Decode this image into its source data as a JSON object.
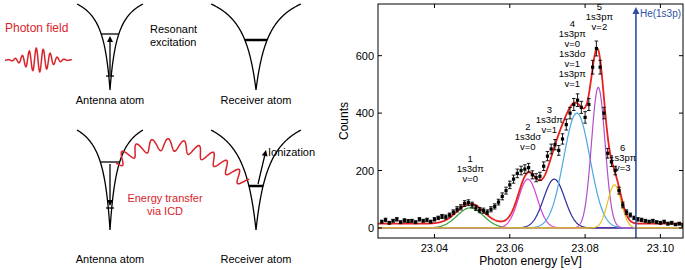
{
  "diagram": {
    "photon_field": "Photon field",
    "top": {
      "antenna": "Antenna atom",
      "receiver": "Receiver atom",
      "process": [
        "Resonant",
        "excitation"
      ]
    },
    "bottom": {
      "antenna": "Antenna atom",
      "receiver": "Receiver atom",
      "process": [
        "Energy transfer",
        "via ICD"
      ],
      "ionization": "Ionization"
    }
  },
  "chart_data": {
    "type": "scatter",
    "x_label": "Photon energy [eV]",
    "y_label": "Counts",
    "xlim": [
      23.025,
      23.106
    ],
    "ylim": [
      -35,
      780
    ],
    "xticks": [
      23.04,
      23.06,
      23.08,
      {
        "value": 23.1,
        "label": "23.10"
      }
    ],
    "yticks": [
      0,
      200,
      400,
      600
    ],
    "grid": false,
    "series": [
      {
        "type": "scatter",
        "color": "#000000",
        "marker": "square",
        "x": [
          23.026,
          23.027,
          23.028,
          23.029,
          23.03,
          23.031,
          23.032,
          23.033,
          23.034,
          23.035,
          23.036,
          23.037,
          23.038,
          23.039,
          23.04,
          23.041,
          23.042,
          23.043,
          23.044,
          23.045,
          23.046,
          23.047,
          23.048,
          23.049,
          23.05,
          23.051,
          23.052,
          23.053,
          23.054,
          23.055,
          23.056,
          23.057,
          23.058,
          23.059,
          23.06,
          23.061,
          23.062,
          23.063,
          23.064,
          23.065,
          23.066,
          23.067,
          23.068,
          23.069,
          23.07,
          23.071,
          23.072,
          23.073,
          23.074,
          23.075,
          23.076,
          23.077,
          23.078,
          23.079,
          23.08,
          23.081,
          23.082,
          23.083,
          23.084,
          23.085,
          23.086,
          23.087,
          23.088,
          23.089,
          23.09,
          23.091,
          23.092,
          23.093,
          23.094,
          23.095,
          23.096,
          23.097,
          23.098,
          23.099,
          23.1,
          23.101,
          23.102,
          23.103,
          23.104,
          23.105,
          23.106
        ],
        "values": [
          22,
          28,
          18,
          25,
          30,
          20,
          26,
          24,
          25,
          20,
          30,
          25,
          28,
          22,
          30,
          35,
          40,
          38,
          45,
          55,
          65,
          72,
          85,
          88,
          80,
          70,
          62,
          60,
          55,
          65,
          75,
          90,
          110,
          130,
          150,
          170,
          190,
          200,
          205,
          210,
          185,
          175,
          180,
          215,
          250,
          275,
          290,
          270,
          310,
          360,
          400,
          430,
          445,
          420,
          385,
          430,
          560,
          625,
          560,
          400,
          260,
          230,
          200,
          130,
          80,
          55,
          45,
          35,
          30,
          28,
          25,
          22,
          25,
          20,
          18,
          22,
          15,
          18,
          12,
          15,
          10
        ],
        "errors": [
          5,
          6,
          5,
          5,
          6,
          5,
          6,
          5,
          5,
          5,
          6,
          5,
          6,
          5,
          6,
          6,
          7,
          7,
          7,
          8,
          9,
          9,
          10,
          10,
          10,
          9,
          9,
          9,
          8,
          9,
          9,
          10,
          12,
          12,
          13,
          14,
          15,
          15,
          15,
          15,
          14,
          14,
          14,
          15,
          16,
          17,
          18,
          17,
          18,
          19,
          20,
          21,
          22,
          21,
          20,
          21,
          24,
          26,
          24,
          20,
          17,
          16,
          15,
          12,
          10,
          8,
          7,
          6,
          6,
          6,
          5,
          5,
          5,
          5,
          5,
          5,
          5,
          5,
          4,
          5,
          4
        ]
      }
    ],
    "fit": {
      "type": "line",
      "color": "#e8211f",
      "baseline": 15
    },
    "peaks": [
      {
        "label": [
          "1",
          "1s3dπ",
          "v=0"
        ],
        "center": 23.0495,
        "height": 70,
        "sigma": 0.0035,
        "color": "#35a035",
        "label_x": 23.0495,
        "label_y": 160
      },
      {
        "label": [
          "2",
          "1s3dσ",
          "v=0"
        ],
        "center": 23.0648,
        "height": 170,
        "sigma": 0.0025,
        "color": "#d63fd6",
        "label_x": 23.0648,
        "label_y": 270
      },
      {
        "label": [
          "3",
          "1s3dπ",
          "v=1"
        ],
        "center": 23.0718,
        "height": 170,
        "sigma": 0.0028,
        "color": "#2b2b9c",
        "label_x": 23.0705,
        "label_y": 330
      },
      {
        "label": [
          "4",
          "1s3pπ",
          "v=0",
          "1s3dσ",
          "v=1",
          "1s3pπ",
          "v=1"
        ],
        "center": 23.0778,
        "height": 400,
        "sigma": 0.0035,
        "color": "#4aa8e2",
        "label_x": 23.0766,
        "label_y": 490
      },
      {
        "label": [
          "5",
          "1s3pπ",
          "v=2"
        ],
        "center": 23.0835,
        "height": 490,
        "sigma": 0.0018,
        "color": "#b24fc9",
        "label_x": 23.0838,
        "label_y": 690
      },
      {
        "label": [
          "6",
          "1s3pπ",
          "v=3"
        ],
        "center": 23.0878,
        "height": 150,
        "sigma": 0.0018,
        "color": "#e6c21a",
        "label_x": 23.09,
        "label_y": 200
      }
    ],
    "reference_line": {
      "x": 23.0935,
      "label": "He(1s3p)",
      "color": "#2f4f9f"
    }
  }
}
